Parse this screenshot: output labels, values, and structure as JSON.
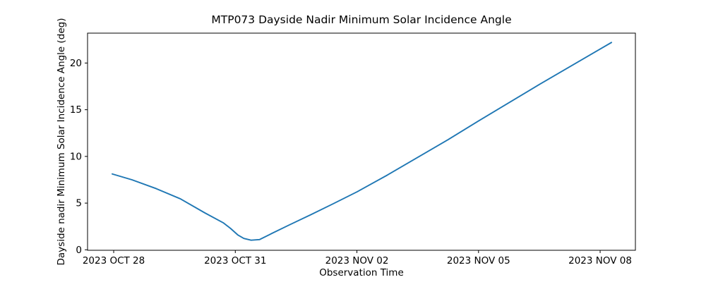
{
  "chart_data": {
    "type": "line",
    "title": "MTP073 Dayside Nadir Minimum Solar Incidence Angle",
    "xlabel": "Observation Time",
    "ylabel": "Dayside nadir Minimum Solar Incidence Angle (deg)",
    "x_tick_labels": [
      "2023 OCT 28",
      "2023 OCT 31",
      "2023 NOV 02",
      "2023 NOV 05",
      "2023 NOV 08"
    ],
    "x_tick_positions": [
      0,
      1,
      2,
      3,
      4
    ],
    "y_tick_labels": [
      "0",
      "5",
      "10",
      "15",
      "20"
    ],
    "y_tick_values": [
      0,
      5,
      10,
      15,
      20
    ],
    "xlim": [
      -0.215,
      4.29
    ],
    "ylim": [
      -0.05,
      23.2
    ],
    "grid": false,
    "legend": false,
    "line_color": "#1f77b4",
    "line_width": 1.9,
    "axis_color": "#000000",
    "background_color": "#ffffff",
    "series": [
      {
        "name": "Dayside nadir minimum solar incidence angle",
        "y_unit": "deg",
        "x_unit": "x-axis tick position (0 = 2023 OCT 28, 1 = 2023 OCT 31, 2 = 2023 NOV 02, 3 = 2023 NOV 05, 4 = 2023 NOV 08)",
        "points": [
          [
            -0.012,
            8.12
          ],
          [
            0.15,
            7.5
          ],
          [
            0.35,
            6.55
          ],
          [
            0.55,
            5.45
          ],
          [
            0.75,
            3.95
          ],
          [
            0.9,
            2.9
          ],
          [
            0.96,
            2.3
          ],
          [
            1.02,
            1.6
          ],
          [
            1.07,
            1.22
          ],
          [
            1.13,
            1.03
          ],
          [
            1.2,
            1.1
          ],
          [
            1.3,
            1.75
          ],
          [
            1.45,
            2.7
          ],
          [
            1.62,
            3.75
          ],
          [
            1.8,
            4.9
          ],
          [
            2.0,
            6.2
          ],
          [
            2.25,
            8.0
          ],
          [
            2.5,
            9.9
          ],
          [
            2.75,
            11.8
          ],
          [
            3.0,
            13.8
          ],
          [
            3.25,
            15.75
          ],
          [
            3.5,
            17.7
          ],
          [
            3.75,
            19.6
          ],
          [
            4.0,
            21.5
          ],
          [
            4.093,
            22.2
          ]
        ]
      }
    ]
  }
}
